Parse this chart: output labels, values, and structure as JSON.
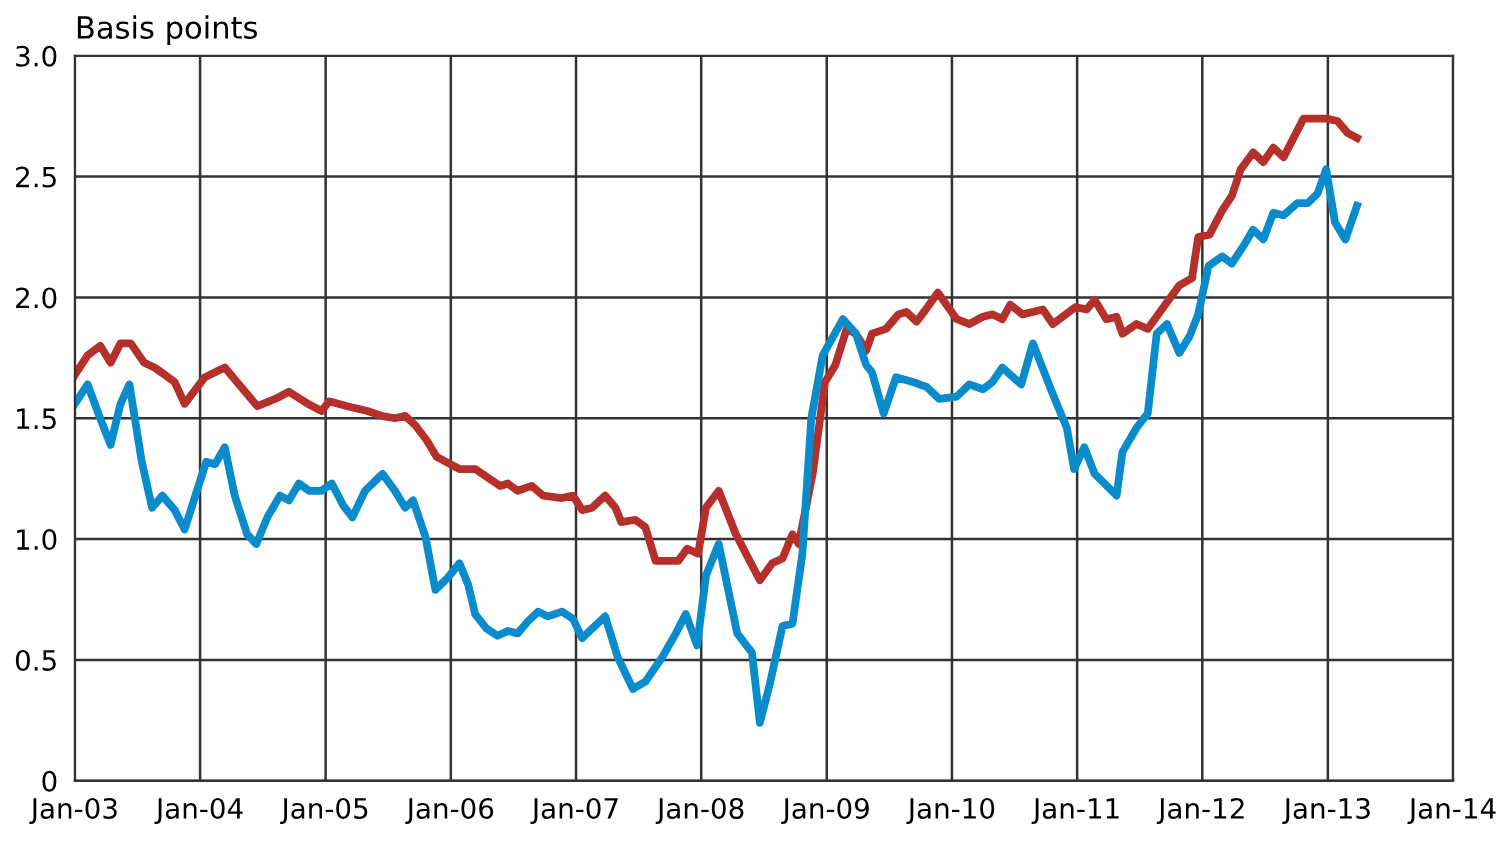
{
  "chart_data": {
    "type": "line",
    "ylabel": "Basis points",
    "xlim": [
      "2003-01-01",
      "2014-01-01"
    ],
    "xticks": [
      {
        "value": "2003-01-01",
        "label": "Jan-03"
      },
      {
        "value": "2004-01-01",
        "label": "Jan-04"
      },
      {
        "value": "2005-01-01",
        "label": "Jan-05"
      },
      {
        "value": "2006-01-01",
        "label": "Jan-06"
      },
      {
        "value": "2007-01-01",
        "label": "Jan-07"
      },
      {
        "value": "2008-01-01",
        "label": "Jan-08"
      },
      {
        "value": "2009-01-01",
        "label": "Jan-09"
      },
      {
        "value": "2010-01-01",
        "label": "Jan-10"
      },
      {
        "value": "2011-01-01",
        "label": "Jan-11"
      },
      {
        "value": "2012-01-01",
        "label": "Jan-12"
      },
      {
        "value": "2013-01-01",
        "label": "Jan-13"
      },
      {
        "value": "2014-01-01",
        "label": "Jan-14"
      }
    ],
    "ylim": [
      0,
      3
    ],
    "yticks": [
      0,
      0.5,
      {
        "value": 1,
        "label": "1.0"
      },
      1.5,
      {
        "value": 2,
        "label": "2.0"
      },
      2.5,
      {
        "value": 3,
        "label": "3.0"
      }
    ],
    "grid": true,
    "marker": "none",
    "line_style": "solid",
    "series": [
      {
        "color": "#b5302a",
        "x": [
          "2003-01-01",
          "2003-02-07",
          "2003-03-16",
          "2003-04-15",
          "2003-05-14",
          "2003-06-13",
          "2003-07-22",
          "2003-08-21",
          "2003-09-20",
          "2003-10-19",
          "2003-11-17",
          "2004-01-15",
          "2004-03-13",
          "2004-04-29",
          "2004-06-16",
          "2004-08-07",
          "2004-09-16",
          "2004-11-10",
          "2004-12-20",
          "2005-01-11",
          "2005-03-05",
          "2005-05-03",
          "2005-06-13",
          "2005-07-22",
          "2005-08-21",
          "2005-09-20",
          "2005-10-22",
          "2005-11-21",
          "2006-01-26",
          "2006-03-13",
          "2006-05-25",
          "2006-06-16",
          "2006-07-15",
          "2006-08-25",
          "2006-09-27",
          "2006-11-21",
          "2006-12-23",
          "2007-01-19",
          "2007-02-17",
          "2007-03-27",
          "2007-04-26",
          "2007-05-13",
          "2007-06-23",
          "2007-07-22",
          "2007-08-21",
          "2007-10-26",
          "2007-11-21",
          "2007-12-23",
          "2008-01-15",
          "2008-02-21",
          "2008-04-11",
          "2008-06-20",
          "2008-07-26",
          "2008-08-25",
          "2008-09-23",
          "2008-10-11",
          "2008-11-21",
          "2008-12-27",
          "2009-01-26",
          "2009-02-28",
          "2009-03-27",
          "2009-04-26",
          "2009-05-13",
          "2009-06-23",
          "2009-07-29",
          "2009-08-21",
          "2009-09-20",
          "2009-10-22",
          "2009-11-21",
          "2009-12-16",
          "2010-01-15",
          "2010-02-21",
          "2010-04-01",
          "2010-04-29",
          "2010-05-28",
          "2010-06-20",
          "2010-07-26",
          "2010-09-23",
          "2010-10-22",
          "2010-12-27",
          "2011-01-29",
          "2011-02-21",
          "2011-03-27",
          "2011-04-26",
          "2011-05-13",
          "2011-06-23",
          "2011-07-26",
          "2011-09-20",
          "2011-10-26",
          "2011-12-02",
          "2011-12-20",
          "2012-01-22",
          "2012-02-28",
          "2012-03-27",
          "2012-04-22",
          "2012-05-28",
          "2012-06-27",
          "2012-07-26",
          "2012-08-25",
          "2012-10-22",
          "2012-12-27",
          "2013-01-29",
          "2013-02-28",
          "2013-03-27"
        ],
        "values": [
          1.68,
          1.76,
          1.8,
          1.73,
          1.81,
          1.81,
          1.73,
          1.71,
          1.68,
          1.65,
          1.56,
          1.67,
          1.71,
          1.63,
          1.55,
          1.58,
          1.61,
          1.56,
          1.53,
          1.57,
          1.55,
          1.53,
          1.51,
          1.5,
          1.51,
          1.47,
          1.41,
          1.34,
          1.29,
          1.29,
          1.22,
          1.23,
          1.2,
          1.22,
          1.18,
          1.17,
          1.18,
          1.12,
          1.13,
          1.18,
          1.13,
          1.07,
          1.08,
          1.05,
          0.91,
          0.91,
          0.96,
          0.94,
          1.13,
          1.2,
          1.02,
          0.83,
          0.9,
          0.92,
          1.02,
          0.98,
          1.27,
          1.65,
          1.72,
          1.87,
          1.85,
          1.78,
          1.85,
          1.87,
          1.93,
          1.94,
          1.9,
          1.96,
          2.02,
          1.97,
          1.91,
          1.89,
          1.92,
          1.93,
          1.91,
          1.97,
          1.93,
          1.95,
          1.89,
          1.96,
          1.95,
          1.99,
          1.91,
          1.92,
          1.85,
          1.89,
          1.87,
          1.98,
          2.05,
          2.08,
          2.25,
          2.26,
          2.36,
          2.42,
          2.53,
          2.6,
          2.56,
          2.62,
          2.58,
          2.74,
          2.74,
          2.73,
          2.68,
          2.66
        ]
      },
      {
        "color": "#0a8ccc",
        "x": [
          "2003-01-01",
          "2003-02-07",
          "2003-03-13",
          "2003-04-15",
          "2003-05-14",
          "2003-06-09",
          "2003-07-15",
          "2003-08-14",
          "2003-09-13",
          "2003-10-19",
          "2003-11-17",
          "2003-12-16",
          "2004-01-19",
          "2004-02-14",
          "2004-03-13",
          "2004-04-11",
          "2004-05-17",
          "2004-06-13",
          "2004-07-15",
          "2004-08-21",
          "2004-09-16",
          "2004-10-15",
          "2004-11-14",
          "2004-12-20",
          "2005-01-19",
          "2005-02-21",
          "2005-03-20",
          "2005-04-26",
          "2005-06-16",
          "2005-07-22",
          "2005-08-21",
          "2005-09-13",
          "2005-10-19",
          "2005-11-17",
          "2005-12-23",
          "2006-01-26",
          "2006-02-21",
          "2006-03-13",
          "2006-04-15",
          "2006-05-17",
          "2006-06-16",
          "2006-07-15",
          "2006-08-14",
          "2006-09-13",
          "2006-10-11",
          "2006-11-21",
          "2006-12-23",
          "2007-01-19",
          "2007-02-17",
          "2007-03-27",
          "2007-05-03",
          "2007-06-16",
          "2007-07-22",
          "2007-09-09",
          "2007-10-19",
          "2007-11-17",
          "2007-12-20",
          "2008-01-15",
          "2008-02-21",
          "2008-04-15",
          "2008-05-28",
          "2008-06-20",
          "2008-07-19",
          "2008-08-25",
          "2008-09-23",
          "2008-10-22",
          "2008-11-17",
          "2008-12-20",
          "2009-02-17",
          "2009-03-27",
          "2009-04-26",
          "2009-05-13",
          "2009-06-16",
          "2009-07-22",
          "2009-09-09",
          "2009-10-19",
          "2009-11-25",
          "2010-01-15",
          "2010-02-21",
          "2010-04-01",
          "2010-04-29",
          "2010-05-28",
          "2010-07-22",
          "2010-08-25",
          "2010-10-22",
          "2010-12-02",
          "2010-12-23",
          "2011-01-22",
          "2011-02-21",
          "2011-04-26",
          "2011-05-13",
          "2011-06-23",
          "2011-07-26",
          "2011-08-21",
          "2011-09-20",
          "2011-10-26",
          "2011-11-25",
          "2011-12-20",
          "2012-01-19",
          "2012-02-28",
          "2012-03-27",
          "2012-05-03",
          "2012-05-28",
          "2012-06-27",
          "2012-07-26",
          "2012-08-25",
          "2012-10-04",
          "2012-11-03",
          "2012-12-02",
          "2012-12-27",
          "2013-01-22",
          "2013-02-21",
          "2013-03-27"
        ],
        "values": [
          1.56,
          1.64,
          1.51,
          1.39,
          1.56,
          1.64,
          1.32,
          1.13,
          1.18,
          1.12,
          1.04,
          1.17,
          1.32,
          1.31,
          1.38,
          1.18,
          1.02,
          0.98,
          1.09,
          1.18,
          1.16,
          1.23,
          1.2,
          1.2,
          1.23,
          1.14,
          1.09,
          1.2,
          1.27,
          1.2,
          1.13,
          1.16,
          1.01,
          0.79,
          0.84,
          0.9,
          0.81,
          0.69,
          0.63,
          0.6,
          0.62,
          0.61,
          0.66,
          0.7,
          0.68,
          0.7,
          0.67,
          0.59,
          0.63,
          0.68,
          0.51,
          0.38,
          0.41,
          0.51,
          0.61,
          0.69,
          0.56,
          0.85,
          0.98,
          0.61,
          0.53,
          0.24,
          0.4,
          0.64,
          0.65,
          0.94,
          1.5,
          1.76,
          1.91,
          1.85,
          1.72,
          1.69,
          1.52,
          1.67,
          1.65,
          1.63,
          1.58,
          1.59,
          1.64,
          1.62,
          1.65,
          1.71,
          1.64,
          1.81,
          1.6,
          1.46,
          1.29,
          1.38,
          1.27,
          1.18,
          1.36,
          1.46,
          1.52,
          1.85,
          1.89,
          1.77,
          1.84,
          1.93,
          2.13,
          2.17,
          2.14,
          2.22,
          2.28,
          2.24,
          2.35,
          2.34,
          2.39,
          2.39,
          2.43,
          2.53,
          2.31,
          2.24,
          2.38
        ]
      }
    ]
  }
}
